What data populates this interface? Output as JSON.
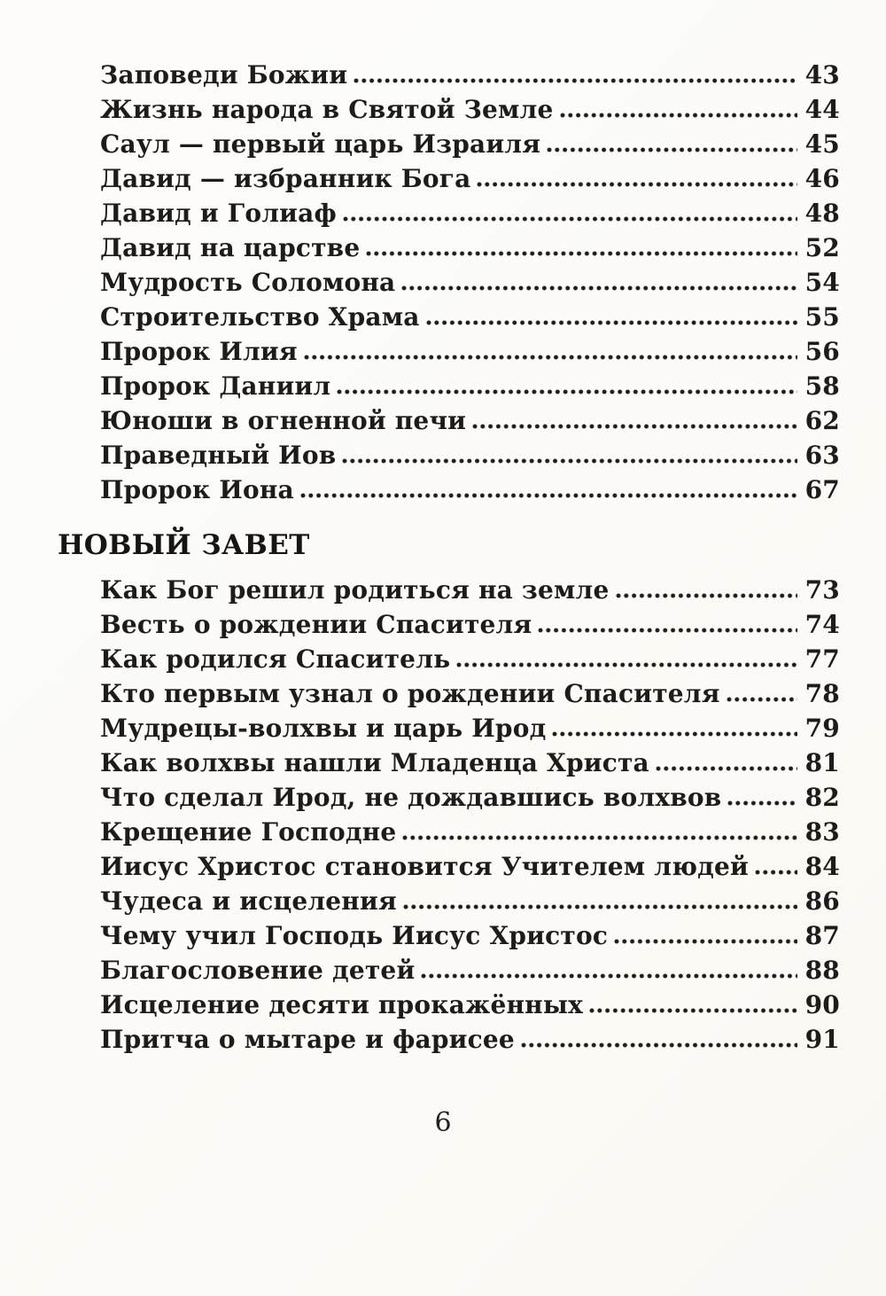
{
  "page": {
    "number": "6"
  },
  "colors": {
    "background": "#fcfbf7",
    "ink": "#1e1c19"
  },
  "toc": {
    "sections": [
      {
        "heading": null,
        "items": [
          {
            "title": "Заповеди Божии",
            "page": "43"
          },
          {
            "title": "Жизнь народа в Святой Земле",
            "page": "44"
          },
          {
            "title": "Саул — первый царь Израиля",
            "page": "45"
          },
          {
            "title": "Давид — избранник Бога",
            "page": "46"
          },
          {
            "title": "Давид и Голиаф",
            "page": "48"
          },
          {
            "title": "Давид на царстве",
            "page": "52"
          },
          {
            "title": "Мудрость Соломона",
            "page": "54"
          },
          {
            "title": "Строительство Храма",
            "page": "55"
          },
          {
            "title": "Пророк Илия",
            "page": "56"
          },
          {
            "title": "Пророк Даниил",
            "page": "58"
          },
          {
            "title": "Юноши в огненной печи",
            "page": "62"
          },
          {
            "title": "Праведный Иов",
            "page": "63"
          },
          {
            "title": "Пророк Иона",
            "page": "67"
          }
        ]
      },
      {
        "heading": "НОВЫЙ ЗАВЕТ",
        "items": [
          {
            "title": "Как Бог решил родиться на земле",
            "page": "73"
          },
          {
            "title": "Весть о рождении Спасителя",
            "page": "74"
          },
          {
            "title": "Как родился Спаситель",
            "page": "77"
          },
          {
            "title": "Кто первым узнал о рождении Спасителя",
            "page": "78"
          },
          {
            "title": "Мудрецы-волхвы и царь Ирод",
            "page": "79"
          },
          {
            "title": "Как волхвы нашли Младенца Христа",
            "page": "81"
          },
          {
            "title": "Что сделал Ирод, не дождавшись волхвов",
            "page": "82"
          },
          {
            "title": "Крещение Господне",
            "page": "83"
          },
          {
            "title": "Иисус Христос становится Учителем людей",
            "page": "84"
          },
          {
            "title": "Чудеса и исцеления",
            "page": "86"
          },
          {
            "title": "Чему учил Господь Иисус Христос",
            "page": "87"
          },
          {
            "title": "Благословение детей",
            "page": "88"
          },
          {
            "title": "Исцеление десяти прокажённых",
            "page": "90"
          },
          {
            "title": "Притча о мытаре и фарисее",
            "page": "91"
          }
        ]
      }
    ]
  }
}
